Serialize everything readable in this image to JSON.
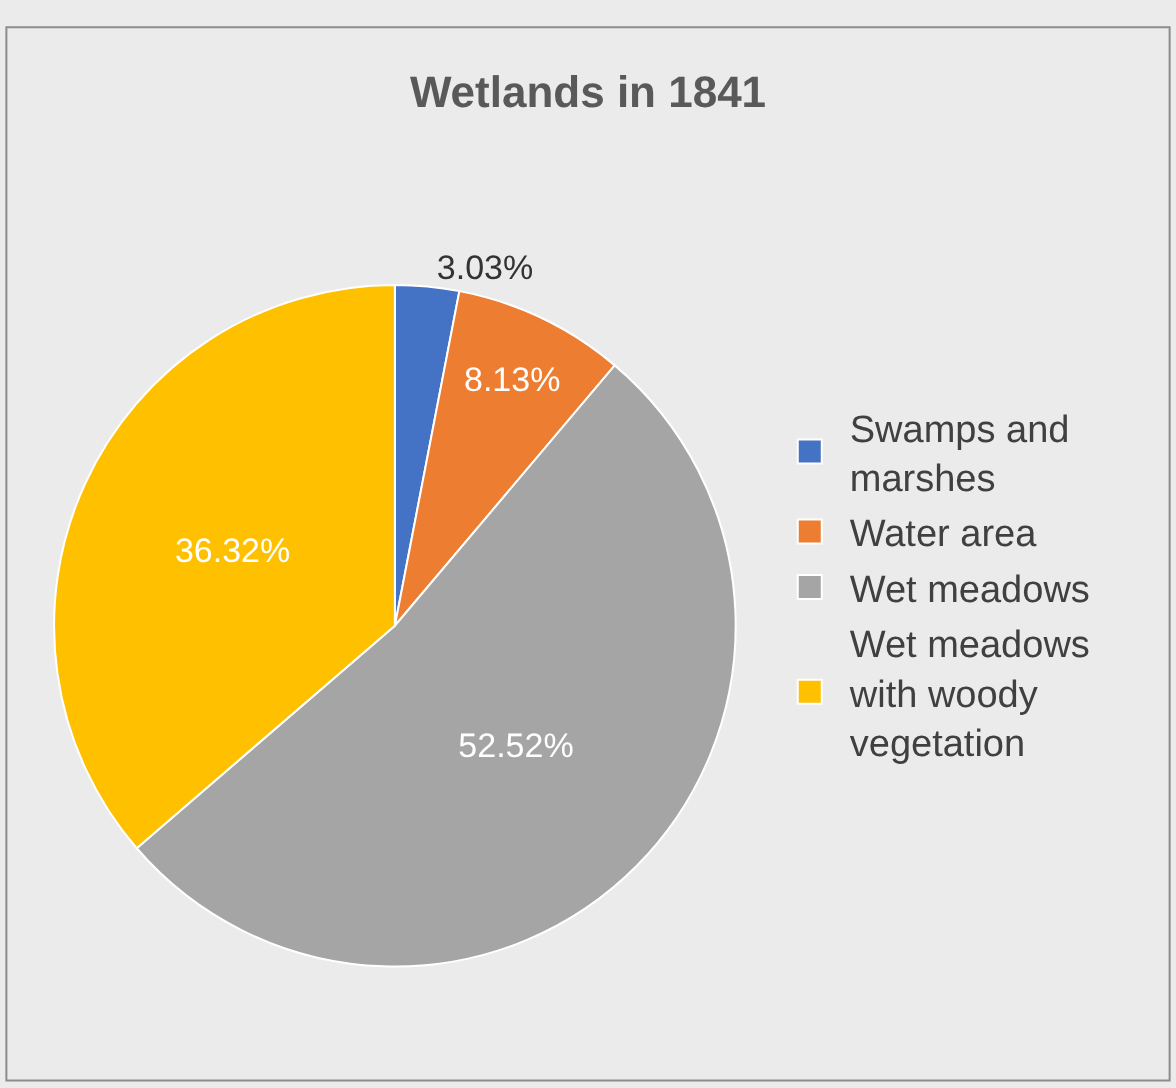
{
  "chart_data": {
    "type": "pie",
    "title": "Wetlands in 1841",
    "categories": [
      "Swamps and marshes",
      "Water area",
      "Wet meadows",
      "Wet meadows with woody vegetation"
    ],
    "values": [
      3.03,
      8.13,
      52.52,
      36.32
    ],
    "colors": [
      "#4472c4",
      "#ed7d31",
      "#a5a5a5",
      "#ffc000"
    ],
    "value_labels": [
      "3.03%",
      "8.13%",
      "52.52%",
      "36.32%"
    ],
    "legend": "right"
  }
}
